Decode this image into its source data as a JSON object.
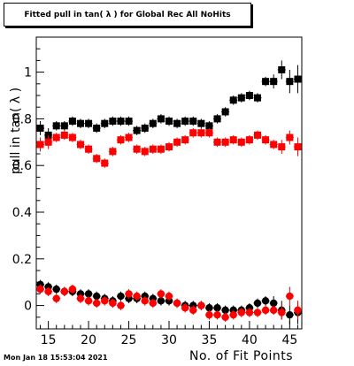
{
  "header": {
    "title": "Fitted pull in tan( λ ) for Global Rec All NoHits"
  },
  "footer": {
    "timestamp": "Mon Jan 18 15:53:04 2021"
  },
  "colors": {
    "series1": "#000000",
    "series2": "#ff0000",
    "axis": "#000000"
  },
  "chart_data": {
    "type": "scatter",
    "title": "Fitted pull in tan( λ ) for Global Rec All NoHits",
    "xlabel": "No. of Fit Points",
    "ylabel": "pull in tan( λ )",
    "xlim": [
      13.5,
      46.5
    ],
    "ylim": [
      -0.1,
      1.15
    ],
    "xticks": [
      15,
      20,
      25,
      30,
      35,
      40,
      45
    ],
    "yticks": [
      0,
      0.2,
      0.4,
      0.6,
      0.8,
      1
    ],
    "ytick_labels": [
      "0",
      "0.2",
      "0.4",
      "0.6",
      "0.8",
      "1"
    ],
    "grid": false,
    "series": [
      {
        "marker": "square",
        "color": "#000000",
        "x": [
          14,
          15,
          16,
          17,
          18,
          19,
          20,
          21,
          22,
          23,
          24,
          25,
          26,
          27,
          28,
          29,
          30,
          31,
          32,
          33,
          34,
          35,
          36,
          37,
          38,
          39,
          40,
          41,
          42,
          43,
          44,
          45,
          46
        ],
        "y": [
          0.76,
          0.73,
          0.77,
          0.77,
          0.79,
          0.78,
          0.78,
          0.76,
          0.78,
          0.79,
          0.79,
          0.79,
          0.75,
          0.76,
          0.78,
          0.8,
          0.79,
          0.78,
          0.79,
          0.79,
          0.78,
          0.77,
          0.8,
          0.83,
          0.88,
          0.89,
          0.9,
          0.89,
          0.96,
          0.96,
          1.01,
          0.96,
          0.97
        ],
        "err": [
          0.03,
          0.03,
          0.02,
          0.02,
          0.02,
          0.02,
          0.02,
          0.02,
          0.02,
          0.02,
          0.02,
          0.02,
          0.02,
          0.02,
          0.02,
          0.02,
          0.02,
          0.02,
          0.02,
          0.02,
          0.02,
          0.02,
          0.02,
          0.02,
          0.02,
          0.02,
          0.02,
          0.02,
          0.02,
          0.03,
          0.04,
          0.05,
          0.06
        ]
      },
      {
        "marker": "square",
        "color": "#ff0000",
        "x": [
          14,
          15,
          16,
          17,
          18,
          19,
          20,
          21,
          22,
          23,
          24,
          25,
          26,
          27,
          28,
          29,
          30,
          31,
          32,
          33,
          34,
          35,
          36,
          37,
          38,
          39,
          40,
          41,
          42,
          43,
          44,
          45,
          46
        ],
        "y": [
          0.69,
          0.7,
          0.72,
          0.73,
          0.72,
          0.69,
          0.67,
          0.63,
          0.61,
          0.66,
          0.71,
          0.72,
          0.67,
          0.66,
          0.67,
          0.67,
          0.68,
          0.7,
          0.71,
          0.74,
          0.74,
          0.74,
          0.7,
          0.7,
          0.71,
          0.7,
          0.71,
          0.73,
          0.71,
          0.69,
          0.68,
          0.72,
          0.68
        ],
        "err": [
          0.03,
          0.03,
          0.02,
          0.02,
          0.02,
          0.02,
          0.02,
          0.02,
          0.02,
          0.02,
          0.02,
          0.02,
          0.02,
          0.02,
          0.02,
          0.02,
          0.02,
          0.02,
          0.02,
          0.02,
          0.02,
          0.02,
          0.02,
          0.02,
          0.02,
          0.02,
          0.02,
          0.02,
          0.02,
          0.02,
          0.03,
          0.03,
          0.04
        ]
      },
      {
        "marker": "circle",
        "color": "#000000",
        "x": [
          14,
          15,
          16,
          17,
          18,
          19,
          20,
          21,
          22,
          23,
          24,
          25,
          26,
          27,
          28,
          29,
          30,
          31,
          32,
          33,
          34,
          35,
          36,
          37,
          38,
          39,
          40,
          41,
          42,
          43,
          44,
          45,
          46
        ],
        "y": [
          0.09,
          0.08,
          0.07,
          0.06,
          0.06,
          0.05,
          0.05,
          0.04,
          0.03,
          0.02,
          0.04,
          0.03,
          0.03,
          0.04,
          0.03,
          0.02,
          0.02,
          0.01,
          0.0,
          0.0,
          0.0,
          -0.01,
          -0.01,
          -0.02,
          -0.02,
          -0.02,
          -0.01,
          0.01,
          0.02,
          0.01,
          -0.02,
          -0.04,
          -0.03
        ],
        "err": [
          0.02,
          0.02,
          0.02,
          0.02,
          0.02,
          0.02,
          0.02,
          0.02,
          0.02,
          0.02,
          0.02,
          0.02,
          0.02,
          0.02,
          0.02,
          0.02,
          0.02,
          0.02,
          0.02,
          0.02,
          0.02,
          0.02,
          0.02,
          0.02,
          0.02,
          0.02,
          0.02,
          0.02,
          0.02,
          0.03,
          0.04,
          0.04,
          0.05
        ]
      },
      {
        "marker": "circle",
        "color": "#ff0000",
        "x": [
          14,
          15,
          16,
          17,
          18,
          19,
          20,
          21,
          22,
          23,
          24,
          25,
          26,
          27,
          28,
          29,
          30,
          31,
          32,
          33,
          34,
          35,
          36,
          37,
          38,
          39,
          40,
          41,
          42,
          43,
          44,
          45,
          46
        ],
        "y": [
          0.07,
          0.06,
          0.03,
          0.06,
          0.07,
          0.03,
          0.02,
          0.01,
          0.02,
          0.01,
          0.0,
          0.05,
          0.04,
          0.02,
          0.01,
          0.05,
          0.04,
          0.01,
          -0.01,
          -0.02,
          0.0,
          -0.04,
          -0.04,
          -0.05,
          -0.04,
          -0.03,
          -0.03,
          -0.03,
          -0.02,
          -0.02,
          -0.03,
          0.04,
          -0.02
        ],
        "err": [
          0.02,
          0.02,
          0.02,
          0.02,
          0.02,
          0.02,
          0.02,
          0.02,
          0.02,
          0.02,
          0.02,
          0.02,
          0.02,
          0.02,
          0.02,
          0.02,
          0.02,
          0.02,
          0.02,
          0.02,
          0.02,
          0.02,
          0.02,
          0.02,
          0.02,
          0.02,
          0.02,
          0.02,
          0.02,
          0.02,
          0.03,
          0.04,
          0.04
        ]
      }
    ]
  }
}
